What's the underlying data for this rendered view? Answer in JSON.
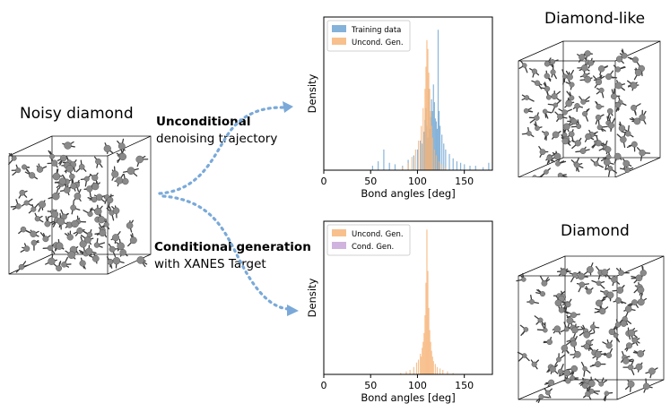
{
  "labels": {
    "noisy": "Noisy diamond",
    "diamond_like": "Diamond-like",
    "diamond": "Diamond",
    "uncond_bold": "Unconditional",
    "uncond_rest": "denoising trajectory",
    "cond_bold": "Conditional generation",
    "cond_rest": "with XANES Target"
  },
  "colors": {
    "training": "#6fa5d2",
    "uncond": "#f7b579",
    "cond": "#c8a6d8",
    "arrow": "#7aa9d9",
    "atom": "#8a8a8a",
    "bond": "#3a3a3a"
  },
  "chart_data": [
    {
      "type": "histogram",
      "xlabel": "Bond angles [deg]",
      "ylabel": "Density",
      "xlim": [
        0,
        180
      ],
      "xticks": [
        0,
        50,
        100,
        150
      ],
      "legend_position": "top-left",
      "series": [
        {
          "name": "Training data",
          "color": "#6fa5d2",
          "bins": [
            [
              52,
              0.03
            ],
            [
              58,
              0.06
            ],
            [
              64,
              0.14
            ],
            [
              70,
              0.05
            ],
            [
              76,
              0.04
            ],
            [
              84,
              0.03
            ],
            [
              90,
              0.07
            ],
            [
              96,
              0.1
            ],
            [
              100,
              0.14
            ],
            [
              103,
              0.2
            ],
            [
              105,
              0.18
            ],
            [
              107,
              0.26
            ],
            [
              108,
              0.34
            ],
            [
              109,
              0.42
            ],
            [
              110,
              0.3
            ],
            [
              111,
              0.22
            ],
            [
              112,
              0.55
            ],
            [
              113,
              0.28
            ],
            [
              114,
              0.36
            ],
            [
              115,
              0.48
            ],
            [
              116,
              0.4
            ],
            [
              117,
              0.58
            ],
            [
              118,
              0.46
            ],
            [
              119,
              0.35
            ],
            [
              120,
              0.33
            ],
            [
              121,
              0.28
            ],
            [
              122,
              0.95
            ],
            [
              123,
              0.4
            ],
            [
              124,
              0.3
            ],
            [
              126,
              0.24
            ],
            [
              128,
              0.18
            ],
            [
              130,
              0.14
            ],
            [
              134,
              0.11
            ],
            [
              138,
              0.08
            ],
            [
              142,
              0.06
            ],
            [
              146,
              0.05
            ],
            [
              150,
              0.04
            ],
            [
              156,
              0.03
            ],
            [
              162,
              0.03
            ],
            [
              170,
              0.02
            ],
            [
              176,
              0.05
            ]
          ]
        },
        {
          "name": "Uncond. Gen.",
          "color": "#f7b579",
          "bins": [
            [
              84,
              0.02
            ],
            [
              90,
              0.05
            ],
            [
              94,
              0.09
            ],
            [
              98,
              0.14
            ],
            [
              101,
              0.2
            ],
            [
              104,
              0.3
            ],
            [
              106,
              0.42
            ],
            [
              108,
              0.55
            ],
            [
              109,
              0.7
            ],
            [
              110,
              0.88
            ],
            [
              111,
              0.82
            ],
            [
              112,
              0.66
            ],
            [
              113,
              0.55
            ],
            [
              114,
              0.4
            ],
            [
              115,
              0.3
            ],
            [
              116,
              0.22
            ],
            [
              118,
              0.14
            ],
            [
              120,
              0.1
            ],
            [
              123,
              0.06
            ],
            [
              126,
              0.04
            ],
            [
              130,
              0.02
            ]
          ]
        }
      ]
    },
    {
      "type": "histogram",
      "xlabel": "Bond angles [deg]",
      "ylabel": "Density",
      "xlim": [
        0,
        180
      ],
      "xticks": [
        0,
        50,
        100,
        150
      ],
      "legend_position": "top-left",
      "series": [
        {
          "name": "Uncond. Gen.",
          "color": "#f7b579",
          "bins": [
            [
              82,
              0.01
            ],
            [
              88,
              0.02
            ],
            [
              92,
              0.03
            ],
            [
              96,
              0.05
            ],
            [
              99,
              0.08
            ],
            [
              101,
              0.1
            ],
            [
              103,
              0.14
            ],
            [
              104,
              0.12
            ],
            [
              105,
              0.18
            ],
            [
              106,
              0.22
            ],
            [
              107,
              0.28
            ],
            [
              108,
              0.4
            ],
            [
              109,
              0.62
            ],
            [
              110,
              0.98
            ],
            [
              111,
              0.7
            ],
            [
              112,
              0.45
            ],
            [
              113,
              0.3
            ],
            [
              114,
              0.22
            ],
            [
              115,
              0.16
            ],
            [
              116,
              0.12
            ],
            [
              117,
              0.09
            ],
            [
              119,
              0.07
            ],
            [
              121,
              0.05
            ],
            [
              124,
              0.04
            ],
            [
              127,
              0.03
            ],
            [
              132,
              0.02
            ],
            [
              138,
              0.01
            ]
          ]
        },
        {
          "name": "Cond. Gen.",
          "color": "#c8a6d8",
          "bins": []
        }
      ]
    }
  ]
}
